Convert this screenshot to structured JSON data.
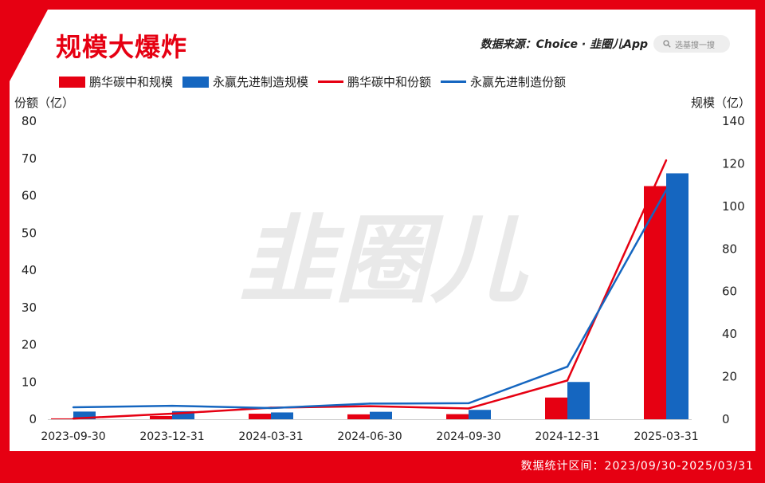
{
  "title": "规模大爆炸",
  "source": "数据来源：Choice · 韭圈儿App",
  "search_placeholder": "选基搜一搜",
  "footer": "数据统计区间：2023/09/30-2025/03/31",
  "watermark": "韭圈儿",
  "colors": {
    "background": "#e60012",
    "red_series": "#e60012",
    "blue_series": "#1566c0"
  },
  "chart_data": {
    "type": "bar+line",
    "categories": [
      "2023-09-30",
      "2023-12-31",
      "2024-03-31",
      "2024-06-30",
      "2024-09-30",
      "2024-12-31",
      "2025-03-31"
    ],
    "left_axis": {
      "label": "份额（亿）",
      "ylim": [
        0,
        80
      ],
      "ticks": [
        0,
        10,
        20,
        30,
        40,
        50,
        60,
        70,
        80
      ]
    },
    "right_axis": {
      "label": "规模（亿）",
      "ylim": [
        0,
        140
      ],
      "ticks": [
        0,
        20,
        40,
        60,
        80,
        100,
        120,
        140
      ]
    },
    "series": [
      {
        "name": "鹏华碳中和规模",
        "kind": "bar",
        "axis": "right",
        "color": "#e60012",
        "values": [
          0.4,
          1.5,
          2.6,
          2.3,
          2.4,
          10.2,
          109.5
        ]
      },
      {
        "name": "永赢先进制造规模",
        "kind": "bar",
        "axis": "right",
        "color": "#1566c0",
        "values": [
          3.6,
          3.8,
          3.2,
          3.5,
          4.4,
          17.5,
          115.5
        ]
      },
      {
        "name": "鹏华碳中和份额",
        "kind": "line",
        "axis": "left",
        "color": "#e60012",
        "values": [
          0.2,
          1.5,
          3.1,
          3.5,
          2.9,
          10.4,
          69.5
        ]
      },
      {
        "name": "永赢先进制造份额",
        "kind": "line",
        "axis": "left",
        "color": "#1566c0",
        "values": [
          3.2,
          3.6,
          3.0,
          4.2,
          4.3,
          14.1,
          61.5
        ]
      }
    ],
    "grid": false,
    "legend_position": "top"
  }
}
